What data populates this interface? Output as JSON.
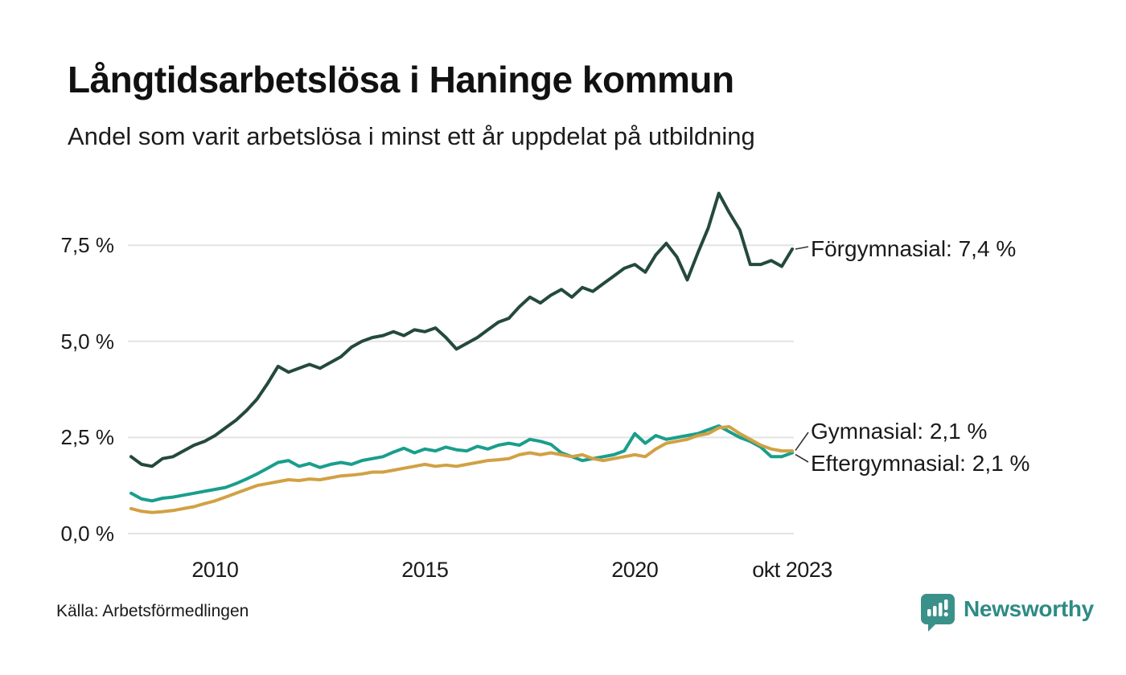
{
  "header": {
    "title": "Långtidsarbetslösa i Haninge kommun",
    "subtitle": "Andel som varit arbetslösa i minst ett år uppdelat på utbildning"
  },
  "footer": {
    "source": "Källa: Arbetsförmedlingen",
    "brand": "Newsworthy"
  },
  "colors": {
    "forgymnasial": "#24493d",
    "gymnasial": "#1a9e8c",
    "eftergymnasial": "#d1a144",
    "gridline": "#e3e3e3",
    "connector": "#333333",
    "text": "#1a1a1a",
    "brand_icon": "#3a9189",
    "brand_text": "#2e8b84"
  },
  "chart_data": {
    "type": "line",
    "title": "Långtidsarbetslösa i Haninge kommun",
    "subtitle": "Andel som varit arbetslösa i minst ett år uppdelat på utbildning",
    "unit": "percent, share unemployed at least one year",
    "x_start": 2008,
    "x_step": 0.25,
    "x_end": 2023.75,
    "ylim": [
      0,
      9.4
    ],
    "grid": "horizontal",
    "legend_position": "end-of-line labels, right side",
    "x_ticks": [
      {
        "value": 2010,
        "label": "2010"
      },
      {
        "value": 2015,
        "label": "2015"
      },
      {
        "value": 2020,
        "label": "2020"
      },
      {
        "value": 2023.75,
        "label": "okt 2023"
      }
    ],
    "y_ticks": [
      {
        "value": 0,
        "label": "0,0 %"
      },
      {
        "value": 2.5,
        "label": "2,5 %"
      },
      {
        "value": 5,
        "label": "5,0 %"
      },
      {
        "value": 7.5,
        "label": "7,5 %"
      }
    ],
    "series": [
      {
        "name": "Förgymnasial",
        "end_label": "Förgymnasial: 7,4 %",
        "last_value": 7.4,
        "color": "#24493d",
        "values": [
          2.0,
          1.8,
          1.75,
          1.95,
          2.0,
          2.15,
          2.3,
          2.4,
          2.55,
          2.75,
          2.95,
          3.2,
          3.5,
          3.9,
          4.35,
          4.2,
          4.3,
          4.4,
          4.3,
          4.45,
          4.6,
          4.85,
          5.0,
          5.1,
          5.15,
          5.25,
          5.15,
          5.3,
          5.25,
          5.35,
          5.1,
          4.8,
          4.95,
          5.1,
          5.3,
          5.5,
          5.6,
          5.9,
          6.15,
          6.0,
          6.2,
          6.35,
          6.15,
          6.4,
          6.3,
          6.5,
          6.7,
          6.9,
          7.0,
          6.8,
          7.25,
          7.55,
          7.2,
          6.6,
          7.3,
          7.95,
          8.85,
          8.35,
          7.9,
          7.0,
          7.0,
          7.1,
          6.95,
          7.4
        ]
      },
      {
        "name": "Gymnasial",
        "end_label": "Gymnasial: 2,1 %",
        "last_value": 2.1,
        "color": "#1a9e8c",
        "values": [
          1.05,
          0.9,
          0.85,
          0.92,
          0.95,
          1.0,
          1.05,
          1.1,
          1.15,
          1.2,
          1.3,
          1.42,
          1.55,
          1.7,
          1.85,
          1.9,
          1.75,
          1.82,
          1.72,
          1.8,
          1.85,
          1.8,
          1.9,
          1.95,
          2.0,
          2.12,
          2.22,
          2.1,
          2.2,
          2.15,
          2.25,
          2.18,
          2.15,
          2.27,
          2.2,
          2.3,
          2.35,
          2.3,
          2.45,
          2.4,
          2.32,
          2.1,
          2.0,
          1.9,
          1.95,
          2.0,
          2.05,
          2.15,
          2.6,
          2.35,
          2.55,
          2.45,
          2.5,
          2.55,
          2.6,
          2.7,
          2.8,
          2.65,
          2.5,
          2.4,
          2.25,
          2.0,
          2.0,
          2.1
        ]
      },
      {
        "name": "Eftergymnasial",
        "end_label": "Eftergymnasial: 2,1 %",
        "last_value": 2.1,
        "color": "#d1a144",
        "values": [
          0.65,
          0.58,
          0.55,
          0.57,
          0.6,
          0.65,
          0.7,
          0.78,
          0.85,
          0.95,
          1.05,
          1.15,
          1.25,
          1.3,
          1.35,
          1.4,
          1.38,
          1.42,
          1.4,
          1.45,
          1.5,
          1.52,
          1.55,
          1.6,
          1.6,
          1.65,
          1.7,
          1.75,
          1.8,
          1.75,
          1.78,
          1.75,
          1.8,
          1.85,
          1.9,
          1.92,
          1.95,
          2.05,
          2.1,
          2.05,
          2.1,
          2.05,
          2.0,
          2.05,
          1.95,
          1.9,
          1.95,
          2.0,
          2.05,
          2.0,
          2.2,
          2.35,
          2.4,
          2.45,
          2.55,
          2.6,
          2.75,
          2.78,
          2.6,
          2.45,
          2.3,
          2.2,
          2.15,
          2.15
        ]
      }
    ]
  }
}
